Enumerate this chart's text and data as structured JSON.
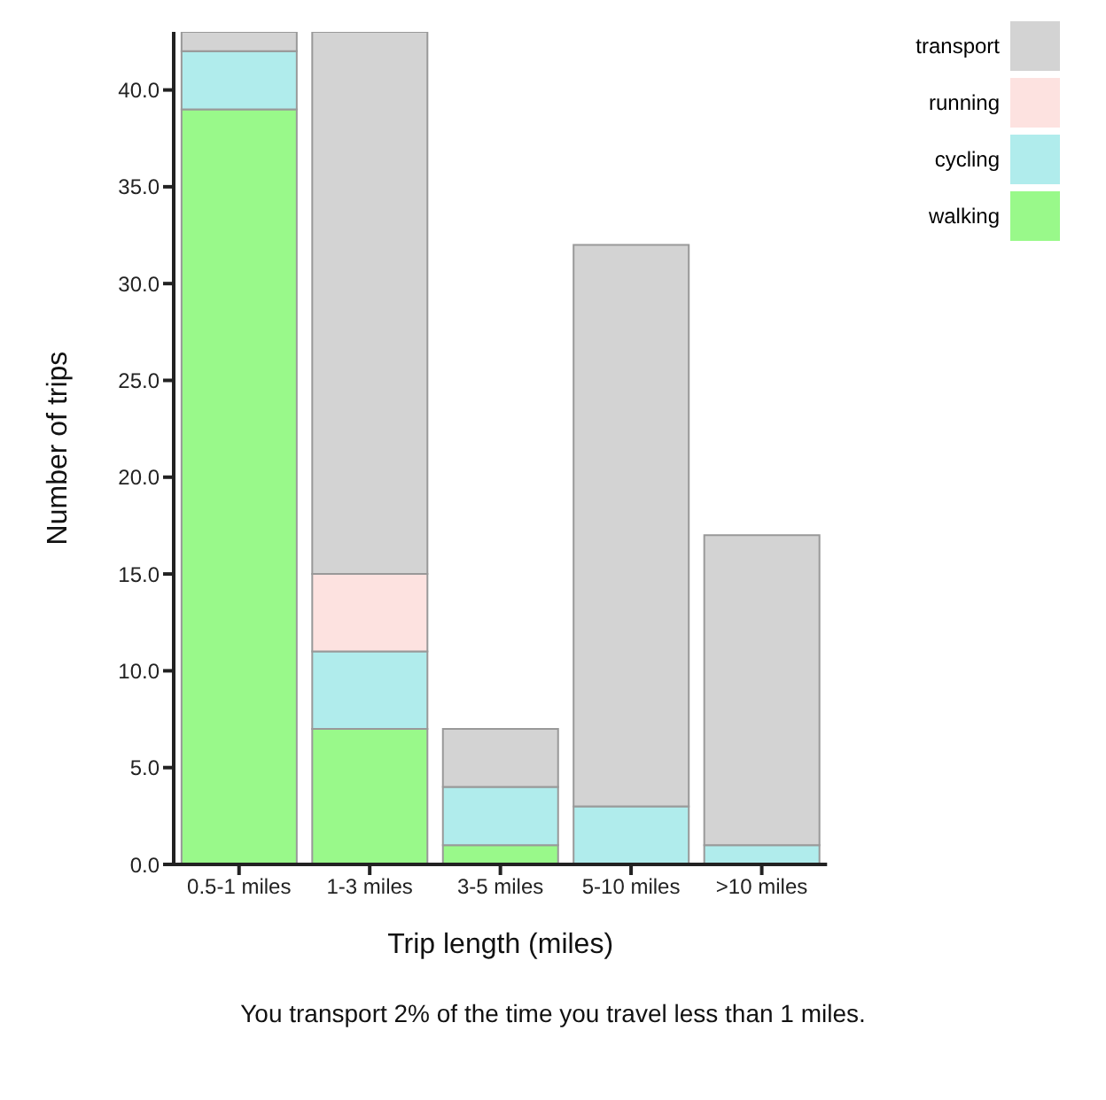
{
  "chart_data": {
    "type": "bar",
    "stacked": true,
    "xlabel": "Trip length (miles)",
    "ylabel": "Number of trips",
    "categories": [
      "0.5-1 miles",
      "1-3 miles",
      "3-5 miles",
      "5-10 miles",
      ">10 miles"
    ],
    "series": [
      {
        "name": "walking",
        "color": "#99f98a",
        "values": [
          39,
          7,
          1,
          0,
          0
        ]
      },
      {
        "name": "cycling",
        "color": "#b0ecec",
        "values": [
          3,
          4,
          3,
          3,
          1
        ]
      },
      {
        "name": "running",
        "color": "#fde2e0",
        "values": [
          0,
          4,
          0,
          0,
          0
        ]
      },
      {
        "name": "transport",
        "color": "#d3d3d3",
        "values": [
          1,
          28,
          3,
          29,
          16
        ]
      }
    ],
    "ylim": [
      0,
      43
    ],
    "yticks": [
      {
        "value": 0,
        "label": "0.0"
      },
      {
        "value": 5,
        "label": "5.0"
      },
      {
        "value": 10,
        "label": "10.0"
      },
      {
        "value": 15,
        "label": "15.0"
      },
      {
        "value": 20,
        "label": "20.0"
      },
      {
        "value": 25,
        "label": "25.0"
      },
      {
        "value": 30,
        "label": "30.0"
      },
      {
        "value": 35,
        "label": "35.0"
      },
      {
        "value": 40,
        "label": "40.0"
      }
    ],
    "legend": "top right",
    "grid": false,
    "annotations": [
      "You transport 2% of the time you travel less than 1 miles."
    ]
  }
}
